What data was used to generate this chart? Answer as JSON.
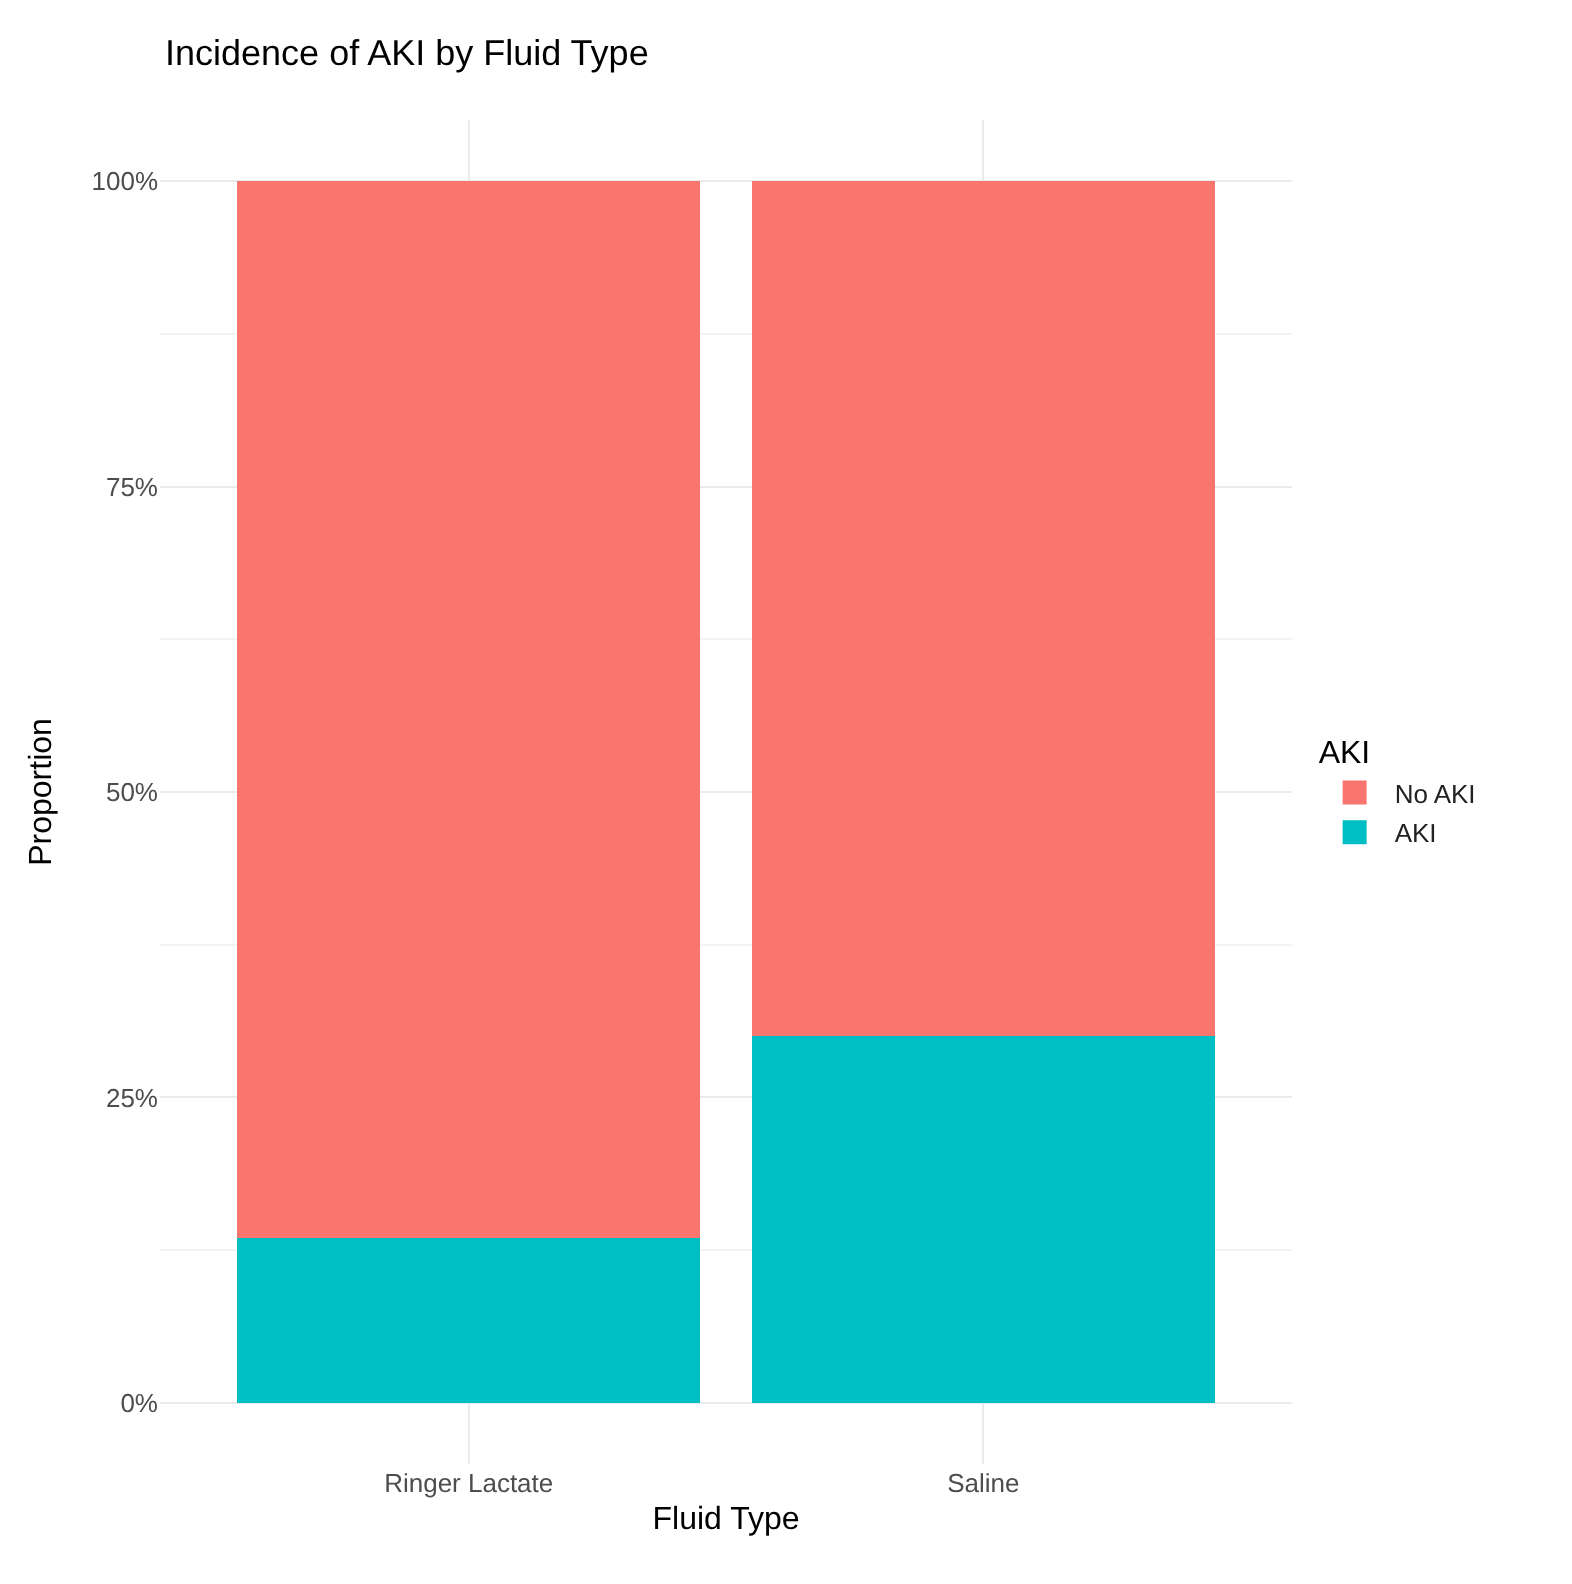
{
  "chart_data": {
    "type": "bar",
    "title": "Incidence of AKI by Fluid Type",
    "xlabel": "Fluid Type",
    "ylabel": "Proportion",
    "legend_title": "AKI",
    "categories": [
      "Ringer Lactate",
      "Saline"
    ],
    "series": [
      {
        "name": "AKI",
        "color": "#00bfc4",
        "values": [
          0.135,
          0.3
        ]
      },
      {
        "name": "No AKI",
        "color": "#f8766d",
        "values": [
          0.865,
          0.7
        ]
      }
    ],
    "stacked": true,
    "ylim": [
      -0.05,
      1.05
    ],
    "yticks": [
      {
        "value": 0,
        "label": "0%"
      },
      {
        "value": 0.25,
        "label": "25%"
      },
      {
        "value": 0.5,
        "label": "50%"
      },
      {
        "value": 0.75,
        "label": "75%"
      },
      {
        "value": 1,
        "label": "100%"
      }
    ],
    "grid": true,
    "legend": "right"
  }
}
